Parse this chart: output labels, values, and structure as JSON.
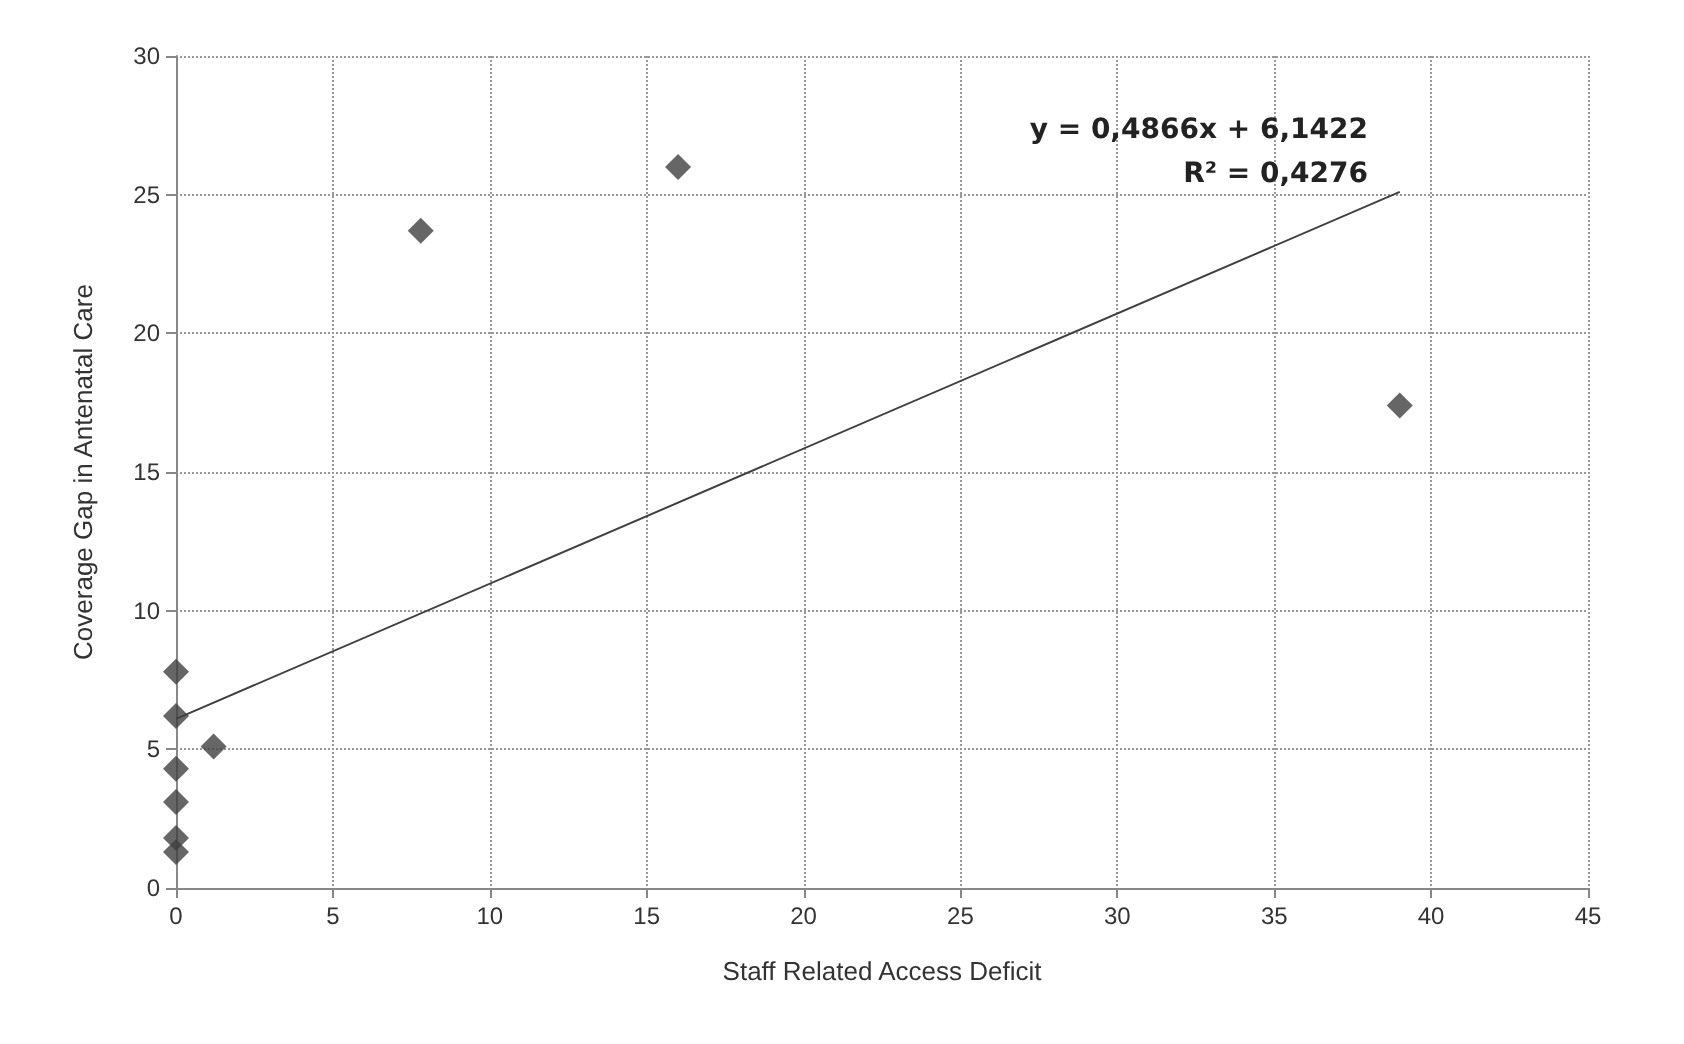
{
  "chart_data": {
    "type": "scatter",
    "xlabel": "Staff Related Access Deficit",
    "ylabel": "Coverage Gap in Antenatal Care",
    "x": [
      0,
      0,
      0,
      0,
      0,
      0,
      1.2,
      7.8,
      16,
      39
    ],
    "series": [
      {
        "color": "#404040",
        "values": [
          7.8,
          6.2,
          4.3,
          3.1,
          1.8,
          1.3,
          5.1,
          23.7,
          26,
          17.4
        ],
        "marker": "diamond"
      },
      {
        "type": "line",
        "color": "#404040",
        "x": [
          0,
          39
        ],
        "values": [
          6.1,
          25.1
        ],
        "line_style": "solid",
        "marker": "none"
      }
    ],
    "annotations": [
      "y = 0,4866x + 6,1422",
      "R² = 0,4276"
    ],
    "xlim": [
      0,
      45
    ],
    "xticks": [
      0,
      5,
      10,
      15,
      20,
      25,
      30,
      35,
      40,
      45
    ],
    "ylim": [
      0,
      30
    ],
    "yticks": [
      0,
      5,
      10,
      15,
      20,
      25,
      30
    ],
    "grid": true
  }
}
